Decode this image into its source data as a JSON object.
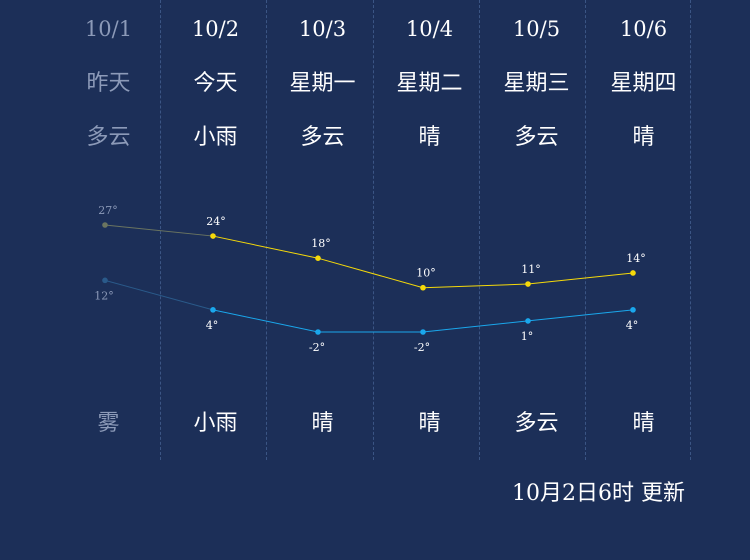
{
  "days": [
    {
      "date": "10/1",
      "name": "昨天",
      "day_condition": "多云",
      "night_condition": "雾"
    },
    {
      "date": "10/2",
      "name": "今天",
      "day_condition": "小雨",
      "night_condition": "小雨"
    },
    {
      "date": "10/3",
      "name": "星期一",
      "day_condition": "多云",
      "night_condition": "晴"
    },
    {
      "date": "10/4",
      "name": "星期二",
      "day_condition": "晴",
      "night_condition": "晴"
    },
    {
      "date": "10/5",
      "name": "星期三",
      "day_condition": "多云",
      "night_condition": "多云"
    },
    {
      "date": "10/6",
      "name": "星期四",
      "day_condition": "晴",
      "night_condition": "晴"
    }
  ],
  "updated_text": "10月2日6时 更新",
  "chart_data": {
    "type": "line",
    "categories": [
      "10/1",
      "10/2",
      "10/3",
      "10/4",
      "10/5",
      "10/6"
    ],
    "series": [
      {
        "values": [
          27,
          24,
          18,
          10,
          11,
          14
        ],
        "labels": [
          "27°",
          "24°",
          "18°",
          "10°",
          "11°",
          "14°"
        ],
        "color": "#f5d90a",
        "past_color": "#6b7560"
      },
      {
        "values": [
          12,
          4,
          -2,
          -2,
          1,
          4
        ],
        "labels": [
          "12°",
          "4°",
          "-2°",
          "-2°",
          "1°",
          "4°"
        ],
        "color": "#1aa7ec",
        "past_color": "#2a5a8a"
      }
    ]
  }
}
